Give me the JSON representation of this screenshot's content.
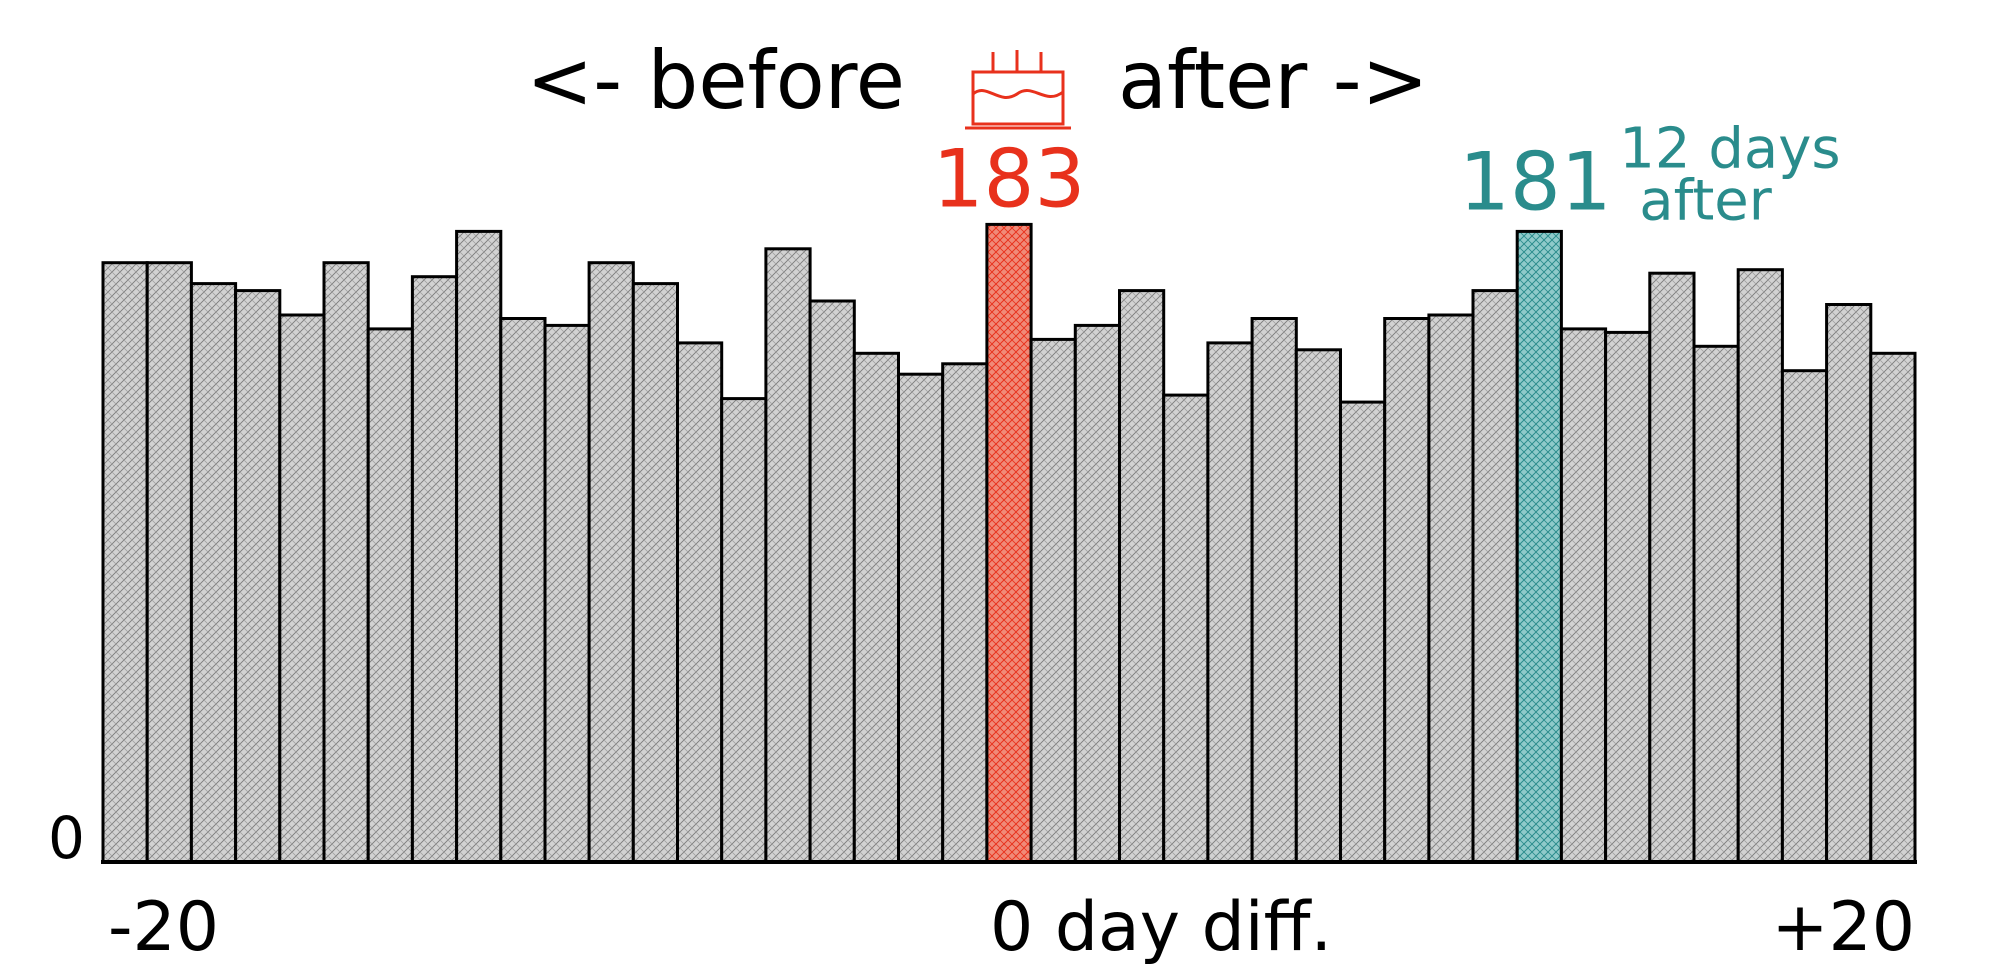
{
  "chart_data": {
    "type": "bar",
    "title_before": "<- before",
    "title_after": "after ->",
    "x": [
      -20,
      -19,
      -18,
      -17,
      -16,
      -15,
      -14,
      -13,
      -12,
      -11,
      -10,
      -9,
      -8,
      -7,
      -6,
      -5,
      -4,
      -3,
      -2,
      -1,
      0,
      1,
      2,
      3,
      4,
      5,
      6,
      7,
      8,
      9,
      10,
      11,
      12,
      13,
      14,
      15,
      16,
      17,
      18,
      19,
      20
    ],
    "values": [
      172,
      172,
      166,
      164,
      157,
      172,
      153,
      168,
      181,
      156,
      154,
      172,
      166,
      149,
      133,
      176,
      161,
      146,
      140,
      143,
      183,
      150,
      154,
      164,
      134,
      149,
      156,
      147,
      132,
      156,
      157,
      164,
      181,
      153,
      152,
      169,
      148,
      170,
      141,
      160,
      146
    ],
    "ylim": [
      0,
      190
    ],
    "y_tick_label": "0",
    "x_label_left": "-20",
    "x_label_center": "0 day diff.",
    "x_label_right": "+20",
    "highlight_birthday": {
      "x": 0,
      "label": "183",
      "color": "#e8311c"
    },
    "highlight_peak": {
      "x": 12,
      "label": "181",
      "note_line1": "12 days",
      "note_line2": "after",
      "color": "#2a8c8c"
    },
    "bar_color": "#c8c8c8",
    "outline_color": "#000000",
    "cake_icon": "birthday-cake-icon",
    "cake_color": "#e8311c"
  }
}
